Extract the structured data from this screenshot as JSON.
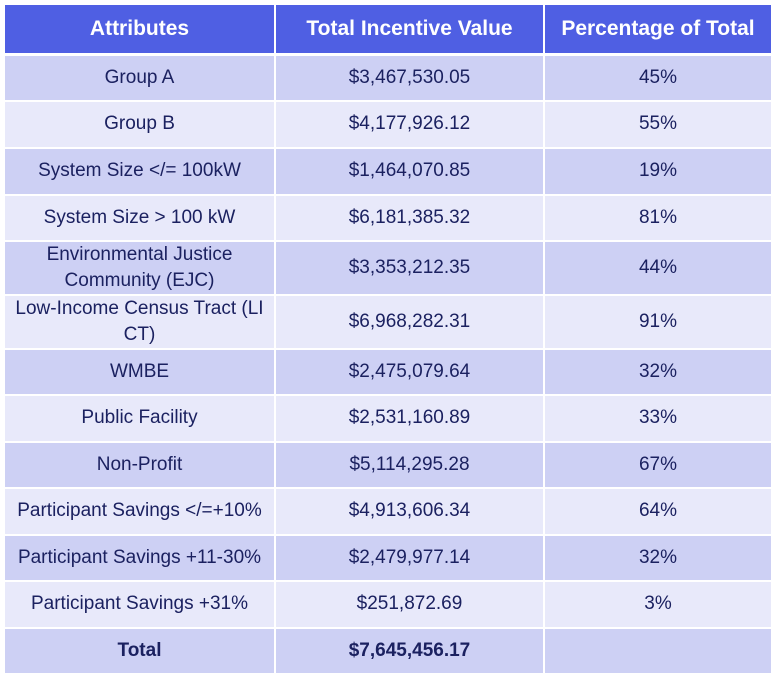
{
  "table": {
    "headers": [
      "Attributes",
      "Total Incentive Value",
      "Percentage of Total"
    ],
    "rows": [
      {
        "attribute": "Group A",
        "value": "$3,467,530.05",
        "percent": "45%"
      },
      {
        "attribute": "Group B",
        "value": "$4,177,926.12",
        "percent": "55%"
      },
      {
        "attribute": "System Size </= 100kW",
        "value": "$1,464,070.85",
        "percent": "19%"
      },
      {
        "attribute": "System Size > 100 kW",
        "value": "$6,181,385.32",
        "percent": "81%"
      },
      {
        "attribute": "Environmental Justice Community (EJC)",
        "value": "$3,353,212.35",
        "percent": "44%"
      },
      {
        "attribute": "Low-Income Census Tract (LI CT)",
        "value": "$6,968,282.31",
        "percent": "91%"
      },
      {
        "attribute": "WMBE",
        "value": "$2,475,079.64",
        "percent": "32%"
      },
      {
        "attribute": "Public Facility",
        "value": "$2,531,160.89",
        "percent": "33%"
      },
      {
        "attribute": "Non-Profit",
        "value": "$5,114,295.28",
        "percent": "67%"
      },
      {
        "attribute": "Participant Savings </=+10%",
        "value": "$4,913,606.34",
        "percent": "64%"
      },
      {
        "attribute": "Participant Savings +11-30%",
        "value": "$2,479,977.14",
        "percent": "32%"
      },
      {
        "attribute": "Participant Savings +31%",
        "value": "$251,872.69",
        "percent": "3%"
      }
    ],
    "total": {
      "attribute": "Total",
      "value": "$7,645,456.17",
      "percent": ""
    }
  },
  "colors": {
    "header_bg": "#4f5fe3",
    "header_text": "#ffffff",
    "row_dark": "#cdd0f4",
    "row_light": "#e8e9fa",
    "body_text": "#1b2160"
  }
}
